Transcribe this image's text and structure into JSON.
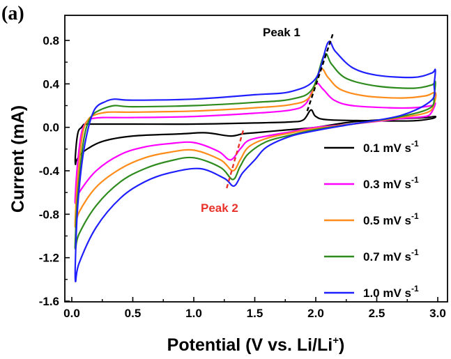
{
  "panel_label": "(a)",
  "chart_data": {
    "type": "line",
    "xlabel": "Potential (V vs. Li/Li",
    "xlabel_sup": "+",
    "xlabel_tail": ")",
    "ylabel": "Current (mA)",
    "xlim": [
      0.0,
      3.0
    ],
    "ylim": [
      -1.6,
      0.95
    ],
    "x_ticks": [
      "0.0",
      "0.5",
      "1.0",
      "1.5",
      "2.0",
      "2.5",
      "3.0"
    ],
    "y_ticks": [
      "0.8",
      "0.4",
      "0.0",
      "-0.4",
      "-0.8",
      "-1.2",
      "-1.6"
    ],
    "grid": false,
    "legend_position": "right",
    "annotations": [
      {
        "text": "Peak 1",
        "color": "#000000"
      },
      {
        "text": "Peak 2",
        "color": "#e8322a"
      }
    ],
    "peak_lines": [
      {
        "color": "#000000",
        "x": [
          1.93,
          2.14
        ],
        "y": [
          0.15,
          0.86
        ]
      },
      {
        "color": "#e8322a",
        "x": [
          1.27,
          1.41
        ],
        "y": [
          -0.56,
          -0.01
        ]
      }
    ],
    "series": [
      {
        "name": "0.1 mV s",
        "sup": "-1",
        "color": "#000000",
        "anodic": [
          [
            0.1,
            0.03
          ],
          [
            0.5,
            0.03
          ],
          [
            1.0,
            0.03
          ],
          [
            1.5,
            0.04
          ],
          [
            1.8,
            0.05
          ],
          [
            1.9,
            0.07
          ],
          [
            1.96,
            0.16
          ],
          [
            2.0,
            0.1
          ],
          [
            2.1,
            0.07
          ],
          [
            2.5,
            0.06
          ],
          [
            2.8,
            0.06
          ],
          [
            2.95,
            0.08
          ],
          [
            2.98,
            0.1
          ]
        ],
        "cathodic": [
          [
            2.98,
            0.1
          ],
          [
            2.9,
            0.09
          ],
          [
            2.7,
            0.08
          ],
          [
            2.3,
            0.05
          ],
          [
            2.0,
            0.0
          ],
          [
            1.7,
            -0.03
          ],
          [
            1.5,
            -0.05
          ],
          [
            1.4,
            -0.06
          ],
          [
            1.3,
            -0.08
          ],
          [
            1.1,
            -0.05
          ],
          [
            0.9,
            -0.06
          ],
          [
            0.5,
            -0.08
          ],
          [
            0.25,
            -0.13
          ],
          [
            0.1,
            -0.22
          ],
          [
            0.04,
            -0.3
          ],
          [
            0.03,
            -0.34
          ],
          [
            0.03,
            -0.25
          ],
          [
            0.05,
            -0.05
          ],
          [
            0.08,
            0.0
          ],
          [
            0.1,
            0.03
          ]
        ]
      },
      {
        "name": "0.3 mV s",
        "sup": "-1",
        "color": "#ff00ff",
        "anodic": [
          [
            0.16,
            0.08
          ],
          [
            0.25,
            0.09
          ],
          [
            0.5,
            0.09
          ],
          [
            1.0,
            0.1
          ],
          [
            1.5,
            0.13
          ],
          [
            1.8,
            0.16
          ],
          [
            1.92,
            0.22
          ],
          [
            2.0,
            0.4
          ],
          [
            2.06,
            0.35
          ],
          [
            2.15,
            0.25
          ],
          [
            2.3,
            0.2
          ],
          [
            2.6,
            0.18
          ],
          [
            2.8,
            0.18
          ],
          [
            2.95,
            0.2
          ],
          [
            2.98,
            0.22
          ]
        ],
        "cathodic": [
          [
            2.98,
            0.22
          ],
          [
            2.95,
            0.14
          ],
          [
            2.9,
            0.1
          ],
          [
            2.7,
            0.08
          ],
          [
            2.3,
            0.03
          ],
          [
            2.0,
            0.0
          ],
          [
            1.8,
            -0.04
          ],
          [
            1.6,
            -0.08
          ],
          [
            1.45,
            -0.12
          ],
          [
            1.38,
            -0.2
          ],
          [
            1.3,
            -0.3
          ],
          [
            1.2,
            -0.22
          ],
          [
            1.0,
            -0.14
          ],
          [
            0.8,
            -0.15
          ],
          [
            0.6,
            -0.18
          ],
          [
            0.4,
            -0.25
          ],
          [
            0.2,
            -0.4
          ],
          [
            0.06,
            -0.6
          ],
          [
            0.03,
            -0.7
          ],
          [
            0.03,
            -0.6
          ],
          [
            0.05,
            -0.3
          ],
          [
            0.08,
            -0.05
          ],
          [
            0.12,
            0.05
          ],
          [
            0.16,
            0.08
          ]
        ]
      },
      {
        "name": "0.5 mV s",
        "sup": "-1",
        "color": "#ff8c1a",
        "anodic": [
          [
            0.2,
            0.12
          ],
          [
            0.3,
            0.14
          ],
          [
            0.5,
            0.14
          ],
          [
            1.0,
            0.15
          ],
          [
            1.5,
            0.18
          ],
          [
            1.8,
            0.21
          ],
          [
            1.95,
            0.28
          ],
          [
            2.04,
            0.53
          ],
          [
            2.1,
            0.46
          ],
          [
            2.2,
            0.35
          ],
          [
            2.4,
            0.29
          ],
          [
            2.7,
            0.27
          ],
          [
            2.9,
            0.29
          ],
          [
            2.98,
            0.32
          ]
        ],
        "cathodic": [
          [
            2.98,
            0.32
          ],
          [
            2.97,
            0.22
          ],
          [
            2.92,
            0.14
          ],
          [
            2.7,
            0.09
          ],
          [
            2.3,
            0.03
          ],
          [
            2.0,
            -0.01
          ],
          [
            1.8,
            -0.05
          ],
          [
            1.6,
            -0.1
          ],
          [
            1.45,
            -0.18
          ],
          [
            1.38,
            -0.3
          ],
          [
            1.32,
            -0.4
          ],
          [
            1.22,
            -0.3
          ],
          [
            1.0,
            -0.21
          ],
          [
            0.8,
            -0.23
          ],
          [
            0.6,
            -0.28
          ],
          [
            0.4,
            -0.38
          ],
          [
            0.2,
            -0.55
          ],
          [
            0.06,
            -0.78
          ],
          [
            0.03,
            -0.92
          ],
          [
            0.03,
            -0.8
          ],
          [
            0.05,
            -0.45
          ],
          [
            0.09,
            -0.05
          ],
          [
            0.14,
            0.08
          ],
          [
            0.2,
            0.12
          ]
        ]
      },
      {
        "name": "0.7 mV s",
        "sup": "-1",
        "color": "#2e8b1e",
        "anodic": [
          [
            0.25,
            0.17
          ],
          [
            0.35,
            0.2
          ],
          [
            0.5,
            0.19
          ],
          [
            1.0,
            0.2
          ],
          [
            1.5,
            0.23
          ],
          [
            1.8,
            0.26
          ],
          [
            1.97,
            0.35
          ],
          [
            2.07,
            0.67
          ],
          [
            2.13,
            0.58
          ],
          [
            2.25,
            0.45
          ],
          [
            2.5,
            0.38
          ],
          [
            2.8,
            0.36
          ],
          [
            2.95,
            0.39
          ],
          [
            2.98,
            0.42
          ]
        ],
        "cathodic": [
          [
            2.98,
            0.42
          ],
          [
            2.97,
            0.3
          ],
          [
            2.94,
            0.18
          ],
          [
            2.7,
            0.1
          ],
          [
            2.3,
            0.03
          ],
          [
            2.0,
            -0.02
          ],
          [
            1.8,
            -0.07
          ],
          [
            1.6,
            -0.13
          ],
          [
            1.45,
            -0.24
          ],
          [
            1.38,
            -0.36
          ],
          [
            1.32,
            -0.48
          ],
          [
            1.22,
            -0.37
          ],
          [
            1.0,
            -0.28
          ],
          [
            0.8,
            -0.31
          ],
          [
            0.6,
            -0.38
          ],
          [
            0.4,
            -0.5
          ],
          [
            0.2,
            -0.72
          ],
          [
            0.06,
            -0.98
          ],
          [
            0.03,
            -1.12
          ],
          [
            0.03,
            -1.0
          ],
          [
            0.05,
            -0.6
          ],
          [
            0.1,
            -0.1
          ],
          [
            0.16,
            0.1
          ],
          [
            0.25,
            0.17
          ]
        ]
      },
      {
        "name": "1.0 mV s",
        "sup": "-1",
        "color": "#1f1fff",
        "anodic": [
          [
            0.28,
            0.24
          ],
          [
            0.35,
            0.26
          ],
          [
            0.5,
            0.25
          ],
          [
            1.0,
            0.26
          ],
          [
            1.5,
            0.3
          ],
          [
            1.8,
            0.33
          ],
          [
            2.0,
            0.45
          ],
          [
            2.1,
            0.78
          ],
          [
            2.16,
            0.7
          ],
          [
            2.3,
            0.55
          ],
          [
            2.5,
            0.48
          ],
          [
            2.8,
            0.46
          ],
          [
            2.95,
            0.5
          ],
          [
            2.98,
            0.53
          ]
        ],
        "cathodic": [
          [
            2.98,
            0.53
          ],
          [
            2.97,
            0.4
          ],
          [
            2.95,
            0.25
          ],
          [
            2.7,
            0.11
          ],
          [
            2.3,
            0.03
          ],
          [
            2.0,
            -0.03
          ],
          [
            1.8,
            -0.08
          ],
          [
            1.6,
            -0.18
          ],
          [
            1.5,
            -0.3
          ],
          [
            1.4,
            -0.42
          ],
          [
            1.33,
            -0.54
          ],
          [
            1.25,
            -0.47
          ],
          [
            1.05,
            -0.38
          ],
          [
            0.8,
            -0.42
          ],
          [
            0.6,
            -0.5
          ],
          [
            0.4,
            -0.65
          ],
          [
            0.2,
            -0.92
          ],
          [
            0.06,
            -1.25
          ],
          [
            0.03,
            -1.42
          ],
          [
            0.03,
            -1.2
          ],
          [
            0.05,
            -0.7
          ],
          [
            0.1,
            -0.2
          ],
          [
            0.18,
            0.15
          ],
          [
            0.28,
            0.24
          ]
        ]
      }
    ]
  }
}
